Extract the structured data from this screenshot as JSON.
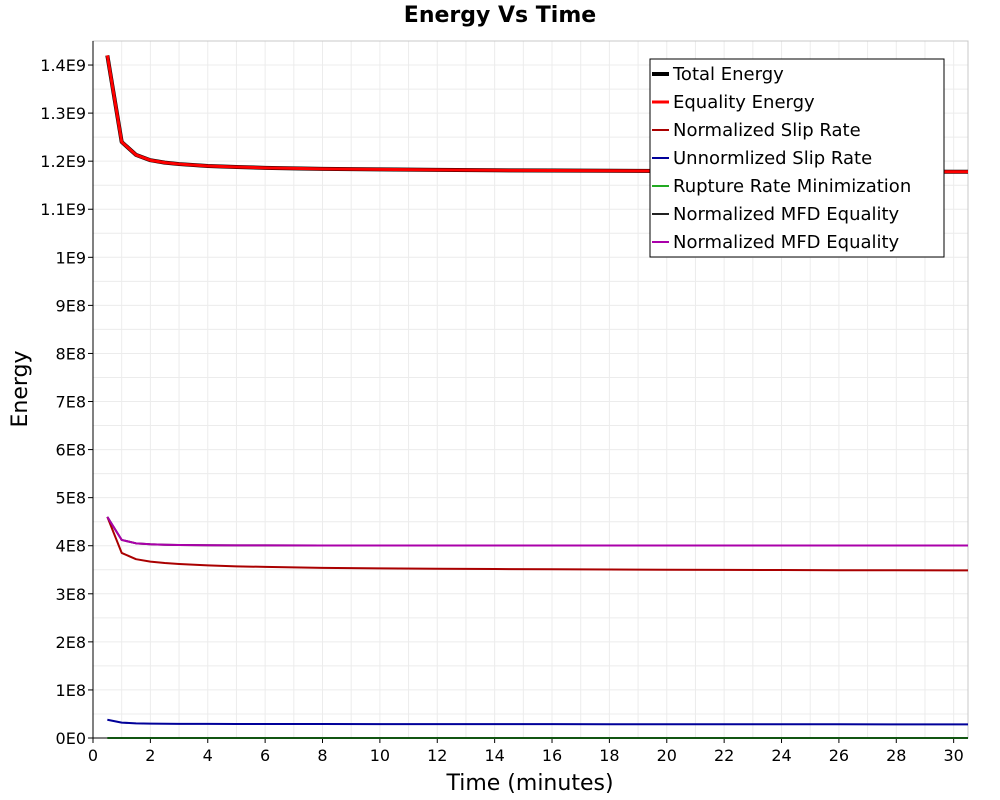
{
  "chart_data": {
    "type": "line",
    "title": "Energy Vs Time",
    "xlabel": "Time (minutes)",
    "ylabel": "Energy",
    "xlim": [
      0,
      30.5
    ],
    "ylim": [
      0,
      1450000000
    ],
    "x_ticks": [
      0,
      2,
      4,
      6,
      8,
      10,
      12,
      14,
      16,
      18,
      20,
      22,
      24,
      26,
      28,
      30
    ],
    "x_tick_labels": [
      "0",
      "2",
      "4",
      "6",
      "8",
      "10",
      "12",
      "14",
      "16",
      "18",
      "20",
      "22",
      "24",
      "26",
      "28",
      "30"
    ],
    "y_ticks": [
      0,
      100000000,
      200000000,
      300000000,
      400000000,
      500000000,
      600000000,
      700000000,
      800000000,
      900000000,
      1000000000,
      1100000000,
      1200000000,
      1300000000,
      1400000000
    ],
    "y_tick_labels": [
      "0E0",
      "1E8",
      "2E8",
      "3E8",
      "4E8",
      "5E8",
      "6E8",
      "7E8",
      "8E8",
      "9E8",
      "1E9",
      "1.1E9",
      "1.2E9",
      "1.3E9",
      "1.4E9"
    ],
    "grid": true,
    "legend_position": "top-right",
    "series": [
      {
        "name": "Total Energy",
        "color": "#000000",
        "line_width": 4,
        "x": [
          0.5,
          1,
          1.5,
          2,
          2.5,
          3,
          4,
          5,
          6,
          8,
          10,
          12,
          14,
          16,
          18,
          20,
          22,
          24,
          26,
          28,
          30,
          30.5
        ],
        "y": [
          1420000000,
          1240000000,
          1213000000,
          1202000000,
          1197000000,
          1194000000,
          1190000000,
          1188000000,
          1186000000,
          1184000000,
          1183000000,
          1182000000,
          1181000000,
          1180500000,
          1180000000,
          1179500000,
          1179000000,
          1178700000,
          1178400000,
          1178200000,
          1178000000,
          1177900000
        ]
      },
      {
        "name": "Equality Energy",
        "color": "#ff0000",
        "line_width": 3,
        "x": [
          0.5,
          1,
          1.5,
          2,
          2.5,
          3,
          4,
          5,
          6,
          8,
          10,
          12,
          14,
          16,
          18,
          20,
          22,
          24,
          26,
          28,
          30,
          30.5
        ],
        "y": [
          1420000000,
          1240000000,
          1213000000,
          1202000000,
          1197000000,
          1194000000,
          1190000000,
          1188000000,
          1186000000,
          1184000000,
          1183000000,
          1182000000,
          1181000000,
          1180500000,
          1180000000,
          1179500000,
          1179000000,
          1178700000,
          1178400000,
          1178200000,
          1178000000,
          1177900000
        ]
      },
      {
        "name": "Normalized Slip Rate",
        "color": "#aa0000",
        "line_width": 2,
        "x": [
          0.5,
          1,
          1.5,
          2,
          2.5,
          3,
          4,
          5,
          6,
          8,
          10,
          12,
          14,
          16,
          18,
          20,
          22,
          24,
          26,
          28,
          30,
          30.5
        ],
        "y": [
          460000000,
          385000000,
          372000000,
          367000000,
          364000000,
          362000000,
          359000000,
          357000000,
          356000000,
          354000000,
          353000000,
          352000000,
          351500000,
          351000000,
          350500000,
          350000000,
          349700000,
          349400000,
          349100000,
          348900000,
          348700000,
          348600000
        ]
      },
      {
        "name": "Unnormlized Slip Rate",
        "color": "#000099",
        "line_width": 2,
        "x": [
          0.5,
          1,
          1.5,
          2,
          2.5,
          3,
          4,
          5,
          6,
          8,
          10,
          12,
          14,
          16,
          18,
          20,
          22,
          24,
          26,
          28,
          30,
          30.5
        ],
        "y": [
          38000000,
          32000000,
          30500000,
          30000000,
          29700000,
          29500000,
          29300000,
          29200000,
          29100000,
          29000000,
          28900000,
          28850000,
          28800000,
          28750000,
          28700000,
          28650000,
          28600000,
          28550000,
          28500000,
          28450000,
          28400000,
          28400000
        ]
      },
      {
        "name": "Rupture Rate Minimization",
        "color": "#22aa22",
        "line_width": 2,
        "x": [
          0.5,
          30.5
        ],
        "y": [
          0,
          0
        ]
      },
      {
        "name": "Normalized MFD Equality",
        "color": "#222222",
        "line_width": 2,
        "x": [
          0.5,
          1,
          1.5,
          2,
          2.5,
          3,
          4,
          5,
          6,
          8,
          10,
          12,
          14,
          16,
          18,
          20,
          22,
          24,
          26,
          28,
          30,
          30.5
        ],
        "y": [
          460000000,
          412000000,
          405000000,
          403000000,
          402000000,
          401500000,
          401000000,
          400800000,
          400700000,
          400600000,
          400500000,
          400500000,
          400500000,
          400500000,
          400500000,
          400500000,
          400500000,
          400500000,
          400500000,
          400500000,
          400500000,
          400500000
        ]
      },
      {
        "name": "Normalized MFD Equality",
        "color": "#aa00aa",
        "line_width": 2,
        "x": [
          0.5,
          1,
          1.5,
          2,
          2.5,
          3,
          4,
          5,
          6,
          8,
          10,
          12,
          14,
          16,
          18,
          20,
          22,
          24,
          26,
          28,
          30,
          30.5
        ],
        "y": [
          460000000,
          412000000,
          405000000,
          403000000,
          402000000,
          401500000,
          401000000,
          400800000,
          400700000,
          400600000,
          400500000,
          400500000,
          400500000,
          400500000,
          400500000,
          400500000,
          400500000,
          400500000,
          400500000,
          400500000,
          400500000,
          400500000
        ]
      }
    ]
  }
}
